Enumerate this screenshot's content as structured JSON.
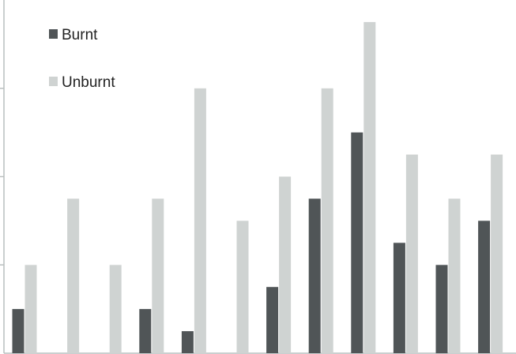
{
  "chart_data": {
    "type": "bar",
    "categories": [
      "",
      "",
      "",
      "",
      "",
      "",
      "",
      "",
      "",
      "",
      "",
      ""
    ],
    "series": [
      {
        "name": "Burnt",
        "color": "#505557",
        "values": [
          1.0,
          0,
          0,
          1.0,
          0.5,
          0,
          1.5,
          3.5,
          5.0,
          2.5,
          2.0,
          3.0
        ]
      },
      {
        "name": "Unburnt",
        "color": "#cfd3d2",
        "values": [
          2.0,
          3.5,
          2.0,
          3.5,
          6.0,
          3.0,
          4.0,
          6.0,
          7.5,
          4.5,
          3.5,
          4.5
        ]
      }
    ],
    "ylim": [
      0,
      8
    ],
    "y_gridlines": false,
    "legend_position": "top-left",
    "axis_color": "#b9bfbf"
  }
}
